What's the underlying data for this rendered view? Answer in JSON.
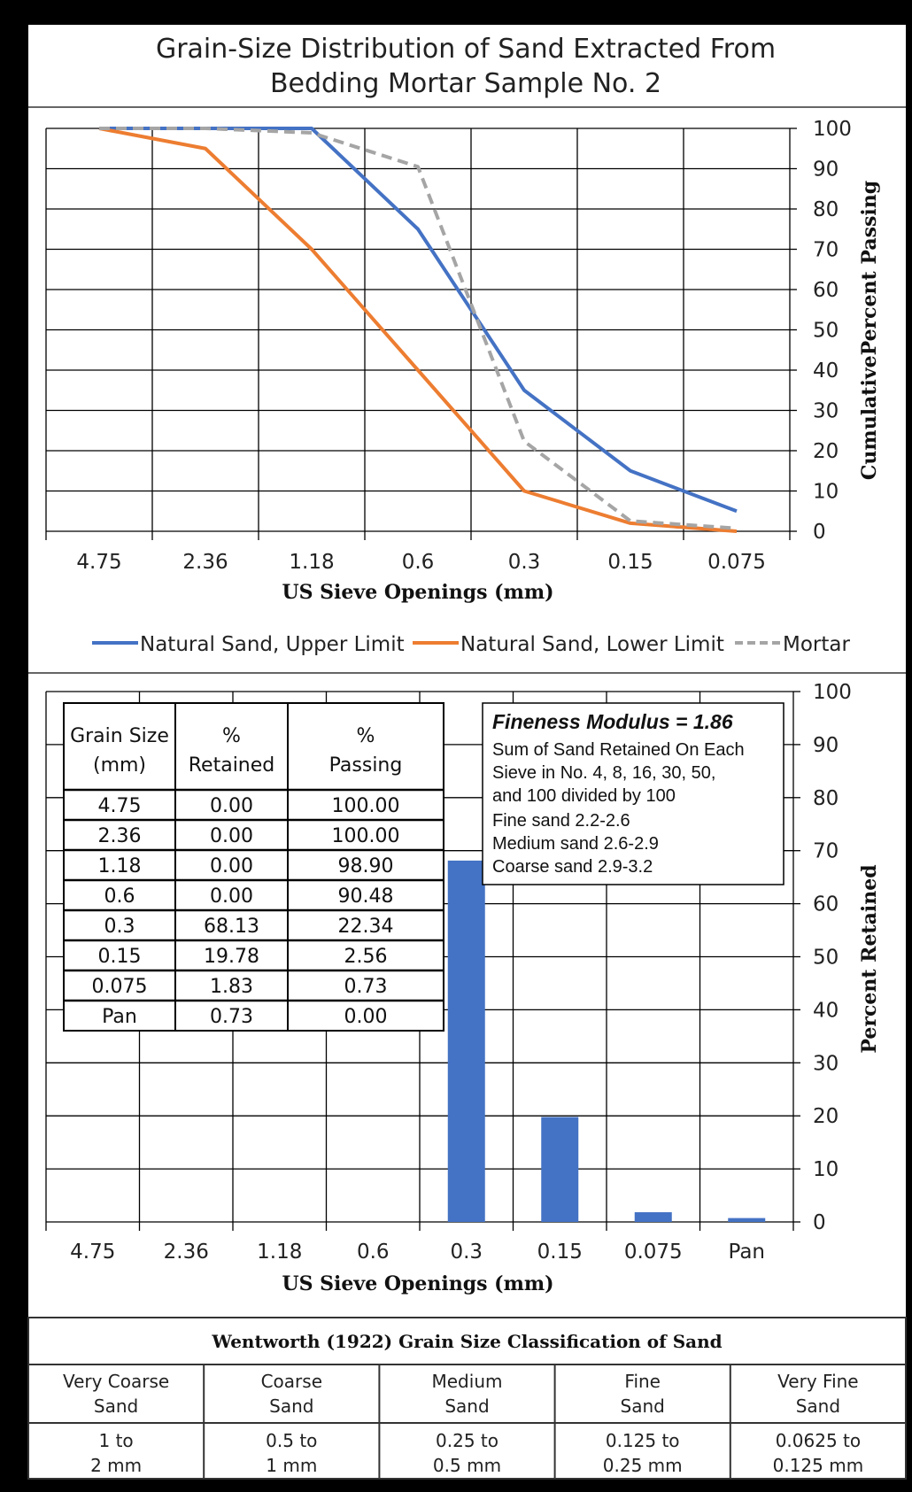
{
  "title": {
    "line1": "Grain-Size Distribution of Sand Extracted From",
    "line2": "Bedding Mortar Sample No. 2"
  },
  "chart_data": [
    {
      "type": "line",
      "categories": [
        "4.75",
        "2.36",
        "1.18",
        "0.6",
        "0.3",
        "0.15",
        "0.075"
      ],
      "series": [
        {
          "name": "Natural Sand, Upper Limit",
          "color": "#4472c4",
          "style": "solid",
          "values": [
            100,
            100,
            100,
            75,
            35,
            15,
            5
          ]
        },
        {
          "name": "Natural Sand, Lower Limit",
          "color": "#ed7d31",
          "style": "solid",
          "values": [
            100,
            95,
            70,
            40,
            10,
            2,
            0
          ]
        },
        {
          "name": "Mortar",
          "color": "#a5a5a5",
          "style": "dashed",
          "values": [
            100,
            100,
            98.9,
            90.48,
            22.34,
            2.56,
            0.73
          ]
        }
      ],
      "xlabel": "US Sieve Openings (mm)",
      "ylabel": "CumulativePercent Passing",
      "ylim": [
        0,
        100
      ],
      "yticks": [
        "0",
        "10",
        "20",
        "30",
        "40",
        "50",
        "60",
        "70",
        "80",
        "90",
        "100"
      ],
      "grid": true,
      "legend": "bottom"
    },
    {
      "type": "bar",
      "categories": [
        "4.75",
        "2.36",
        "1.18",
        "0.6",
        "0.3",
        "0.15",
        "0.075",
        "Pan"
      ],
      "series": [
        {
          "color": "#4472c4",
          "values": [
            0,
            0,
            0,
            0,
            68.13,
            19.78,
            1.83,
            0.73
          ]
        }
      ],
      "xlabel": "US Sieve Openings (mm)",
      "ylabel": "Percent Retained",
      "ylim": [
        0,
        100
      ],
      "yticks": [
        "0",
        "10",
        "20",
        "30",
        "40",
        "50",
        "60",
        "70",
        "80",
        "90",
        "100"
      ],
      "grid": true
    }
  ],
  "data_table": {
    "headers": [
      [
        "Grain Size",
        "(mm)"
      ],
      [
        "%",
        "Retained"
      ],
      [
        "%",
        "Passing"
      ]
    ],
    "rows": [
      [
        "4.75",
        "0.00",
        "100.00"
      ],
      [
        "2.36",
        "0.00",
        "100.00"
      ],
      [
        "1.18",
        "0.00",
        "98.90"
      ],
      [
        "0.6",
        "0.00",
        "90.48"
      ],
      [
        "0.3",
        "68.13",
        "22.34"
      ],
      [
        "0.15",
        "19.78",
        "2.56"
      ],
      [
        "0.075",
        "1.83",
        "0.73"
      ],
      [
        "Pan",
        "0.73",
        "0.00"
      ]
    ]
  },
  "fineness_box": {
    "title": "Fineness Modulus = 1.86",
    "lines": [
      "Sum of Sand Retained On Each",
      "Sieve in No. 4, 8, 16, 30, 50,",
      "and 100 divided by 100"
    ],
    "ranges": [
      "Fine sand 2.2-2.6",
      "Medium sand 2.6-2.9",
      "Coarse  sand 2.9-3.2"
    ]
  },
  "wentworth": {
    "title": "Wentworth (1922) Grain Size Classification of Sand",
    "columns": [
      {
        "name": [
          "Very Coarse",
          "Sand"
        ],
        "range": [
          "1 to",
          "2 mm"
        ]
      },
      {
        "name": [
          "Coarse",
          "Sand"
        ],
        "range": [
          "0.5 to",
          "1 mm"
        ]
      },
      {
        "name": [
          "Medium",
          "Sand"
        ],
        "range": [
          "0.25 to",
          "0.5 mm"
        ]
      },
      {
        "name": [
          "Fine",
          "Sand"
        ],
        "range": [
          "0.125 to",
          "0.25 mm"
        ]
      },
      {
        "name": [
          "Very Fine",
          "Sand"
        ],
        "range": [
          "0.0625 to",
          "0.125 mm"
        ]
      }
    ]
  }
}
